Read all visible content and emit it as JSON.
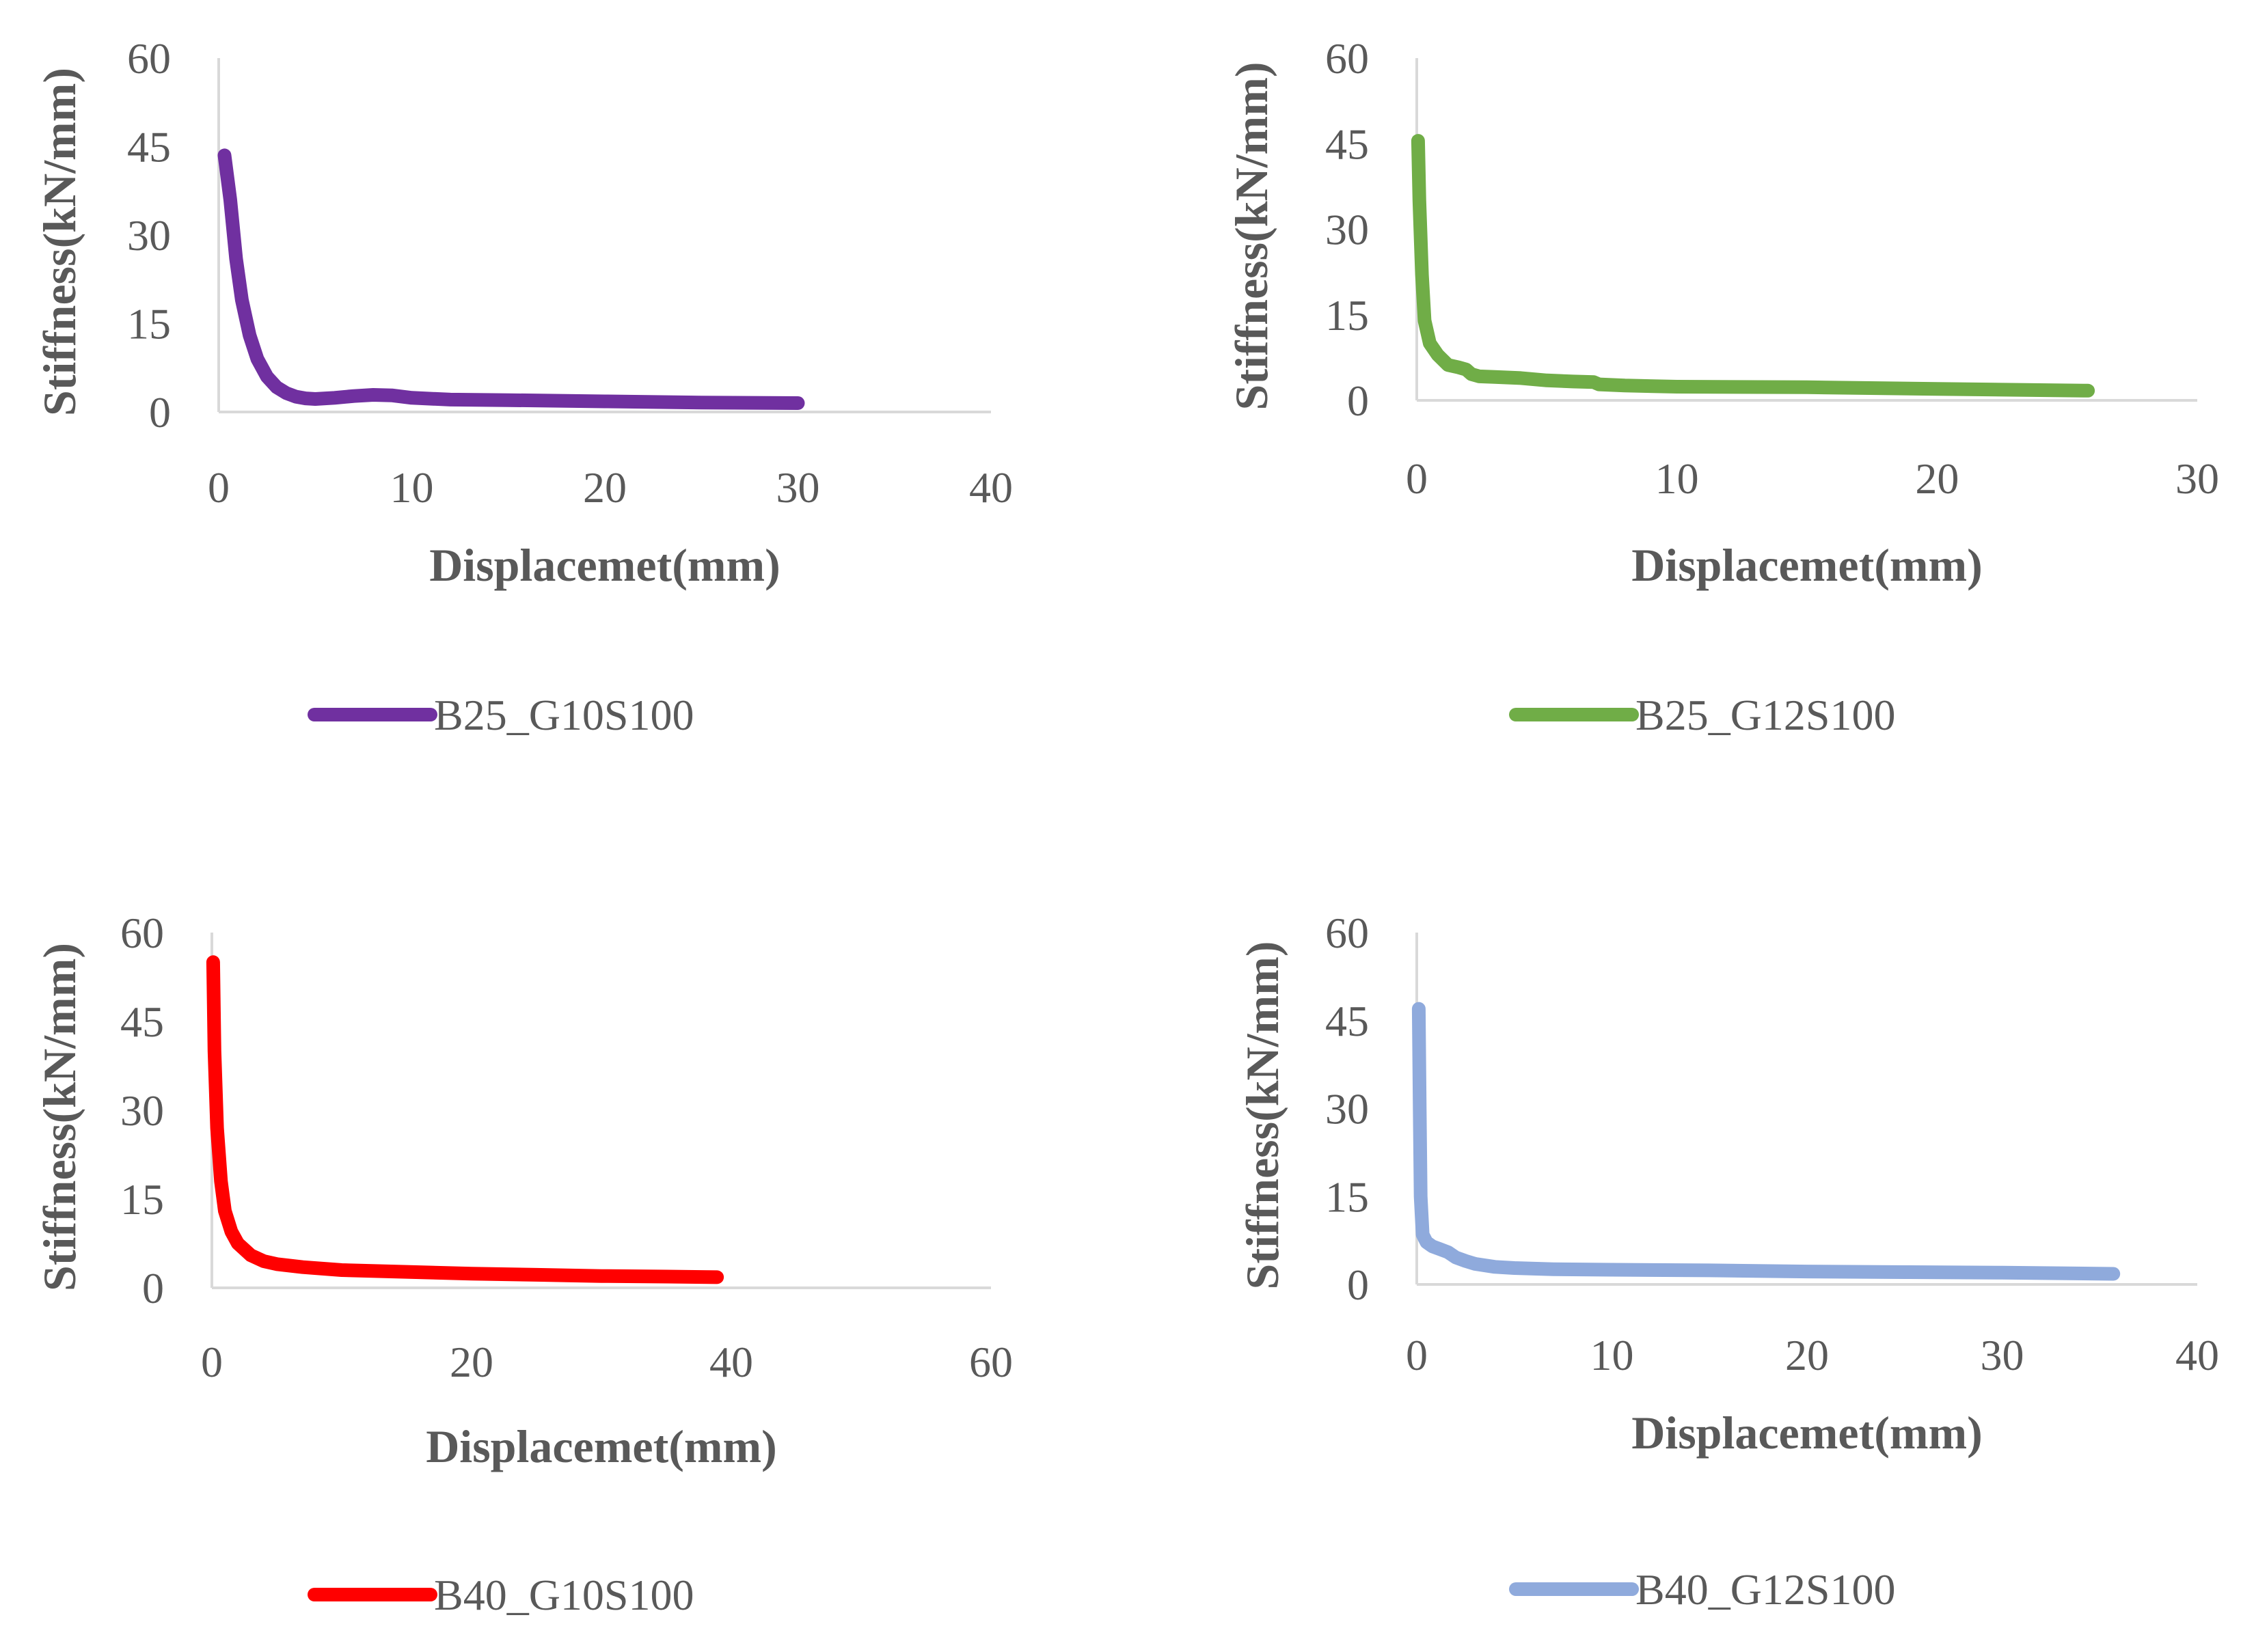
{
  "chart_data": [
    {
      "type": "line",
      "xlabel": "Displacemet(mm)",
      "ylabel": "Stiffness(kN/mm)",
      "xlim": [
        0,
        40
      ],
      "ylim": [
        0,
        60
      ],
      "xticks": [
        "0",
        "10",
        "20",
        "30",
        "40"
      ],
      "yticks": [
        "0",
        "15",
        "30",
        "45",
        "60"
      ],
      "legend": "bottom",
      "series": [
        {
          "name": "B25_G10S100",
          "color": "#7030a0",
          "x": [
            0.3,
            0.6,
            0.9,
            1.2,
            1.6,
            2.0,
            2.5,
            3.0,
            3.5,
            4.0,
            4.5,
            5.0,
            6.0,
            7.0,
            8.0,
            9.0,
            10.0,
            12.0,
            15.0,
            20.0,
            25.0,
            30.0
          ],
          "y": [
            43.5,
            36.0,
            26.0,
            19.0,
            13.0,
            9.0,
            6.0,
            4.2,
            3.2,
            2.6,
            2.3,
            2.2,
            2.4,
            2.7,
            2.9,
            2.8,
            2.4,
            2.1,
            2.0,
            1.8,
            1.6,
            1.5
          ]
        }
      ]
    },
    {
      "type": "line",
      "xlabel": "Displacemet(mm)",
      "ylabel": "Stiffness(kN/mm)",
      "xlim": [
        0,
        30
      ],
      "ylim": [
        0,
        60
      ],
      "xticks": [
        "0",
        "10",
        "20",
        "30"
      ],
      "yticks": [
        "0",
        "15",
        "30",
        "45",
        "60"
      ],
      "legend": "bottom",
      "series": [
        {
          "name": "B25_G12S100",
          "color": "#70ad47",
          "x": [
            0.05,
            0.1,
            0.2,
            0.3,
            0.5,
            0.8,
            1.2,
            1.6,
            1.9,
            2.1,
            2.4,
            3.0,
            4.0,
            5.0,
            6.0,
            6.8,
            7.0,
            8.0,
            10.0,
            15.0,
            20.0,
            25.8
          ],
          "y": [
            45.5,
            35.0,
            22.0,
            14.0,
            10.0,
            8.0,
            6.2,
            5.8,
            5.4,
            4.6,
            4.2,
            4.1,
            3.9,
            3.5,
            3.3,
            3.2,
            2.8,
            2.6,
            2.4,
            2.3,
            2.0,
            1.7
          ]
        }
      ]
    },
    {
      "type": "line",
      "xlabel": "Displacemet(mm)",
      "ylabel": "Stiffness(kN/mm)",
      "xlim": [
        0,
        60
      ],
      "ylim": [
        0,
        60
      ],
      "xticks": [
        "0",
        "20",
        "40",
        "60"
      ],
      "yticks": [
        "0",
        "15",
        "30",
        "45",
        "60"
      ],
      "legend": "bottom",
      "series": [
        {
          "name": "B40_G10S100",
          "color": "#ff0000",
          "x": [
            0.1,
            0.2,
            0.4,
            0.7,
            1.0,
            1.5,
            2.0,
            3.0,
            4.0,
            5.0,
            7.0,
            10.0,
            15.0,
            20.0,
            25.0,
            30.0,
            35.0,
            38.9
          ],
          "y": [
            55.0,
            40.0,
            27.0,
            18.0,
            13.0,
            9.5,
            7.5,
            5.5,
            4.5,
            4.0,
            3.5,
            3.0,
            2.7,
            2.4,
            2.2,
            2.0,
            1.9,
            1.8
          ]
        }
      ]
    },
    {
      "type": "line",
      "xlabel": "Displacemet(mm)",
      "ylabel": "Stiffness(kN/mm)",
      "xlim": [
        0,
        40
      ],
      "ylim": [
        0,
        60
      ],
      "xticks": [
        "0",
        "10",
        "20",
        "30",
        "40"
      ],
      "yticks": [
        "0",
        "15",
        "30",
        "45",
        "60"
      ],
      "legend": "bottom",
      "series": [
        {
          "name": "B40_G12S100",
          "color": "#8faadc",
          "x": [
            0.1,
            0.15,
            0.2,
            0.3,
            0.5,
            0.8,
            1.2,
            1.6,
            2.0,
            2.5,
            3.0,
            4.0,
            5.0,
            7.0,
            10.0,
            15.0,
            20.0,
            25.0,
            30.0,
            35.7
          ],
          "y": [
            47.0,
            30.0,
            15.0,
            8.5,
            7.2,
            6.5,
            6.0,
            5.5,
            4.6,
            4.0,
            3.5,
            3.0,
            2.8,
            2.6,
            2.5,
            2.4,
            2.2,
            2.1,
            2.0,
            1.8
          ]
        }
      ]
    }
  ]
}
